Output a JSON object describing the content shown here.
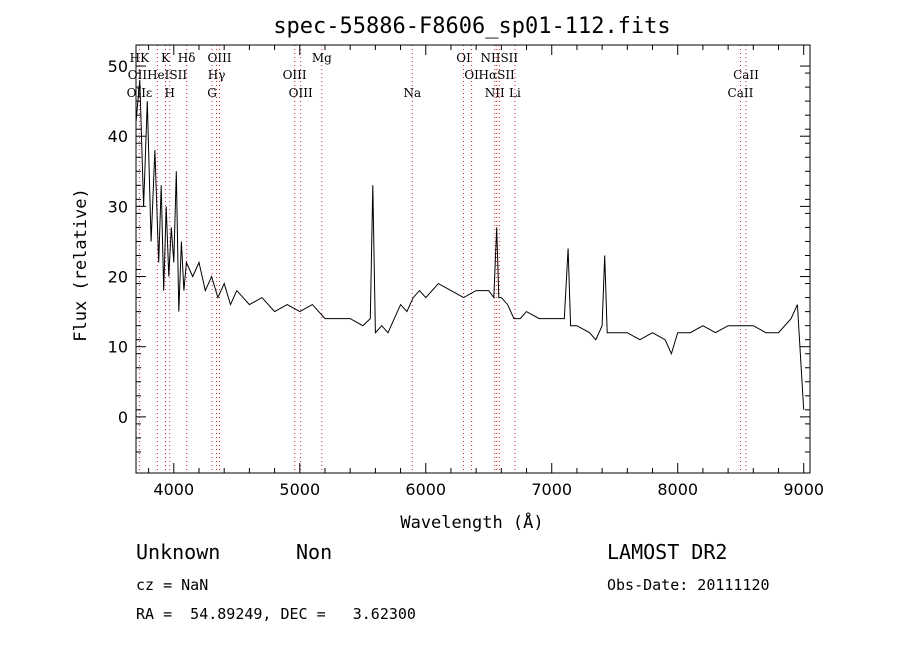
{
  "chart_data": {
    "type": "line",
    "title": "spec-55886-F8606_sp01-112.fits",
    "xlabel": "Wavelength (Å)",
    "ylabel": "Flux (relative)",
    "xlim": [
      3700,
      9050
    ],
    "ylim": [
      -8,
      53
    ],
    "x_ticks": [
      4000,
      5000,
      6000,
      7000,
      8000,
      9000
    ],
    "y_ticks": [
      0,
      10,
      20,
      30,
      40,
      50
    ],
    "grid": false,
    "series": [
      {
        "x": [
          3700,
          3730,
          3760,
          3790,
          3820,
          3850,
          3880,
          3900,
          3920,
          3940,
          3960,
          3980,
          4000,
          4020,
          4040,
          4060,
          4080,
          4100,
          4150,
          4200,
          4250,
          4300,
          4350,
          4400,
          4450,
          4500,
          4550,
          4600,
          4700,
          4800,
          4900,
          5000,
          5100,
          5200,
          5300,
          5400,
          5500,
          5560,
          5580,
          5600,
          5650,
          5700,
          5750,
          5800,
          5850,
          5900,
          5950,
          6000,
          6100,
          6200,
          6300,
          6400,
          6500,
          6540,
          6563,
          6580,
          6600,
          6650,
          6700,
          6750,
          6800,
          6900,
          7000,
          7100,
          7130,
          7150,
          7200,
          7300,
          7350,
          7400,
          7420,
          7440,
          7500,
          7600,
          7700,
          7800,
          7900,
          7950,
          8000,
          8100,
          8200,
          8300,
          8400,
          8500,
          8600,
          8700,
          8800,
          8900,
          8950,
          9000
        ],
        "y": [
          42,
          48,
          30,
          45,
          25,
          38,
          22,
          33,
          18,
          30,
          20,
          27,
          22,
          35,
          15,
          25,
          18,
          22,
          20,
          22,
          18,
          20,
          17,
          19,
          16,
          18,
          17,
          16,
          17,
          15,
          16,
          15,
          16,
          14,
          14,
          14,
          13,
          14,
          33,
          12,
          13,
          12,
          14,
          16,
          15,
          17,
          18,
          17,
          19,
          18,
          17,
          18,
          18,
          17,
          27,
          17,
          17,
          16,
          14,
          14,
          15,
          14,
          14,
          14,
          24,
          13,
          13,
          12,
          11,
          13,
          23,
          12,
          12,
          12,
          11,
          12,
          11,
          9,
          12,
          12,
          13,
          12,
          13,
          13,
          13,
          12,
          12,
          14,
          16,
          1
        ]
      }
    ],
    "line_markers": [
      {
        "name": "HK",
        "x": 3727,
        "row": 0
      },
      {
        "name": "K",
        "x": 3934,
        "row": 0
      },
      {
        "name": "Hδ",
        "x": 4102,
        "row": 0
      },
      {
        "name": "OIII",
        "x": 4363,
        "row": 0
      },
      {
        "name": "Mg",
        "x": 5175,
        "row": 0
      },
      {
        "name": "OI",
        "x": 6300,
        "row": 0
      },
      {
        "name": "NIISII",
        "x": 6584,
        "row": 0
      },
      {
        "name": "OIIHeISII",
        "x": 3870,
        "row": 1
      },
      {
        "name": "Hγ",
        "x": 4340,
        "row": 1
      },
      {
        "name": "OIII",
        "x": 4959,
        "row": 1
      },
      {
        "name": "OI",
        "x": 6364,
        "row": 1
      },
      {
        "name": "HαSII",
        "x": 6563,
        "row": 1
      },
      {
        "name": "CaII",
        "x": 8542,
        "row": 1
      },
      {
        "name": "OIIε",
        "x": 3727,
        "row": 2
      },
      {
        "name": "H",
        "x": 3968,
        "row": 2
      },
      {
        "name": "G",
        "x": 4304,
        "row": 2
      },
      {
        "name": "OIII",
        "x": 5007,
        "row": 2
      },
      {
        "name": "Na",
        "x": 5893,
        "row": 2
      },
      {
        "name": "NII",
        "x": 6548,
        "row": 2
      },
      {
        "name": "Li",
        "x": 6708,
        "row": 2
      },
      {
        "name": "CaII",
        "x": 8498,
        "row": 2
      }
    ]
  },
  "info": {
    "class": "Unknown",
    "subclass": "Non",
    "cz": "cz = NaN",
    "radec": "RA =  54.89249, DEC =   3.62300",
    "survey": "LAMOST DR2",
    "obsdate": "Obs-Date: 20111120"
  }
}
